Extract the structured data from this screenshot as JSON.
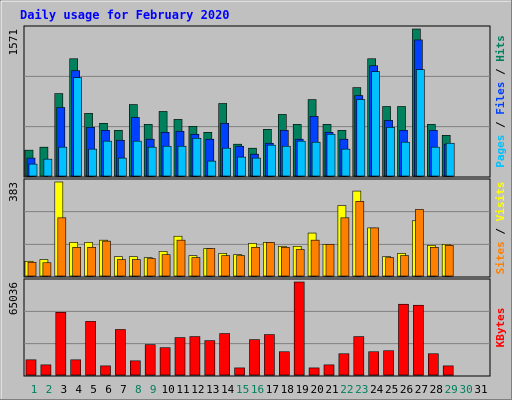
{
  "title": "Daily usage for February 2020",
  "chart_data": [
    {
      "type": "bar",
      "ylim": [
        0,
        1571
      ],
      "yticks": [
        1571
      ],
      "grid": true,
      "series": [
        {
          "name": "Hits",
          "color": "#00805c",
          "values": [
            276,
            308,
            881,
            1253,
            669,
            563,
            488,
            764,
            552,
            690,
            605,
            531,
            467,
            775,
            340,
            297,
            499,
            658,
            552,
            817,
            552,
            488,
            945,
            1253,
            743,
            743,
            1571,
            552,
            435,
            null,
            null
          ]
        },
        {
          "name": "Files",
          "color": "#0040ff",
          "values": [
            191,
            null,
            732,
            1125,
            520,
            488,
            382,
            626,
            393,
            467,
            478,
            446,
            393,
            563,
            318,
            233,
            350,
            488,
            393,
            637,
            467,
            393,
            860,
            1178,
            594,
            488,
            1454,
            488,
            340,
            null,
            null
          ]
        },
        {
          "name": "Pages",
          "color": "#00c0ff",
          "values": [
            127,
            180,
            308,
            1051,
            287,
            372,
            191,
            372,
            308,
            318,
            318,
            403,
            159,
            297,
            202,
            191,
            329,
            318,
            372,
            361,
            446,
            287,
            817,
            1115,
            520,
            361,
            1136,
            308,
            350,
            null,
            null
          ]
        }
      ]
    },
    {
      "type": "bar",
      "ylim": [
        0,
        383
      ],
      "yticks": [
        383
      ],
      "grid": true,
      "series": [
        {
          "name": "Visits",
          "color": "#ffff00",
          "values": [
            60,
            67,
            383,
            137,
            137,
            146,
            79,
            79,
            75,
            100,
            162,
            83,
            112,
            92,
            87,
            133,
            137,
            121,
            121,
            175,
            129,
            287,
            346,
            196,
            79,
            92,
            225,
            125,
            129,
            null,
            null
          ]
        },
        {
          "name": "Sites",
          "color": "#ff8000",
          "values": [
            56,
            54,
            237,
            117,
            117,
            142,
            67,
            67,
            71,
            87,
            146,
            75,
            112,
            83,
            83,
            117,
            137,
            117,
            108,
            146,
            129,
            237,
            304,
            196,
            75,
            83,
            271,
            117,
            125,
            null,
            null
          ]
        }
      ]
    },
    {
      "type": "bar",
      "ylim": [
        0,
        65036
      ],
      "yticks": [
        65036
      ],
      "grid": true,
      "categories": [
        "1",
        "2",
        "3",
        "4",
        "5",
        "6",
        "7",
        "8",
        "9",
        "10",
        "11",
        "12",
        "13",
        "14",
        "15",
        "16",
        "17",
        "18",
        "19",
        "20",
        "21",
        "22",
        "23",
        "24",
        "25",
        "26",
        "27",
        "28",
        "29",
        "30",
        "31"
      ],
      "category_colors": [
        "#00805c",
        "#00805c",
        "#000000",
        "#000000",
        "#000000",
        "#000000",
        "#000000",
        "#00805c",
        "#00805c",
        "#000000",
        "#000000",
        "#000000",
        "#000000",
        "#000000",
        "#00805c",
        "#00805c",
        "#000000",
        "#000000",
        "#000000",
        "#000000",
        "#000000",
        "#00805c",
        "#00805c",
        "#000000",
        "#000000",
        "#000000",
        "#000000",
        "#000000",
        "#00805c",
        "#00805c",
        "#000000"
      ],
      "series": [
        {
          "name": "KBytes",
          "color": "#ff0000",
          "values": [
            10604,
            7069,
            43830,
            10604,
            37468,
            6362,
            31812,
            9897,
            21208,
            19087,
            26156,
            26863,
            24035,
            28984,
            4948,
            24742,
            28277,
            16259,
            65036,
            4948,
            7069,
            14845,
            26863,
            16259,
            16966,
            49485,
            48778,
            14845,
            6362,
            null,
            null
          ]
        }
      ]
    }
  ]
}
